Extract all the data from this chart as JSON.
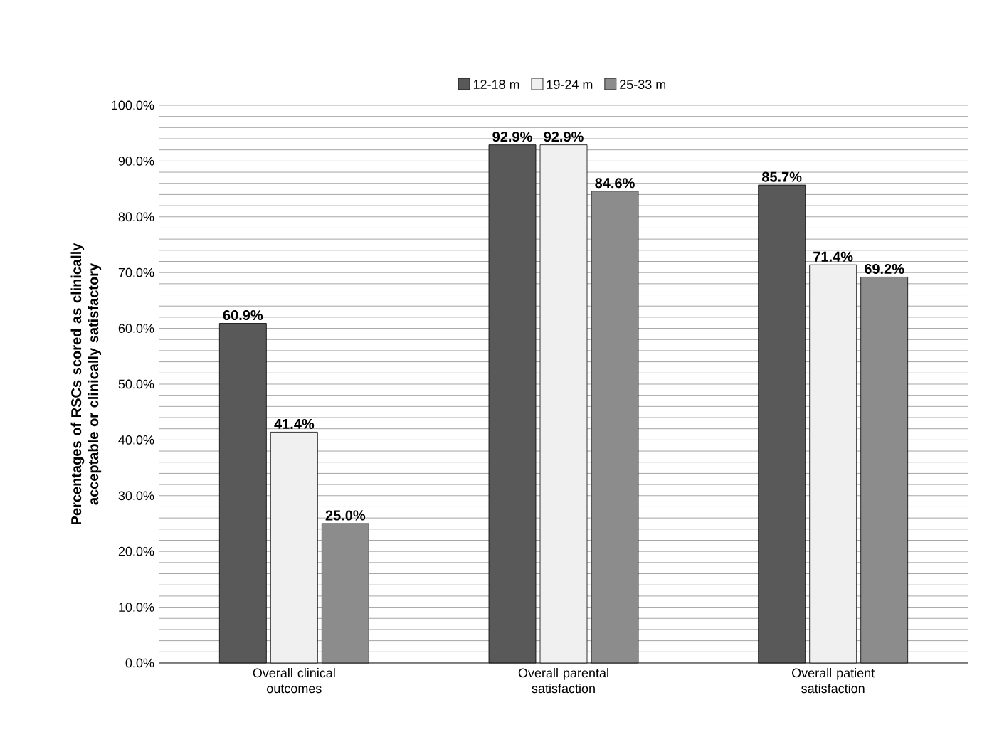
{
  "chart_data": {
    "type": "bar",
    "ylabel": "Percentages of RSCs scored as clinically acceptable or clinically satisfactory",
    "categories": [
      "Overall clinical outcomes",
      "Overall parental satisfaction",
      "Overall patient satisfaction"
    ],
    "series": [
      {
        "name": "12-18 m",
        "color": "#595959",
        "values": [
          60.9,
          92.9,
          85.7
        ],
        "value_labels": [
          "60.9%",
          "92.9%",
          "85.7%"
        ]
      },
      {
        "name": "19-24 m",
        "color": "#f0f0f0",
        "values": [
          41.4,
          92.9,
          71.4
        ],
        "value_labels": [
          "41.4%",
          "92.9%",
          "71.4%"
        ]
      },
      {
        "name": "25-33 m",
        "color": "#8c8c8c",
        "values": [
          25.0,
          84.6,
          69.2
        ],
        "value_labels": [
          "25.0%",
          "84.6%",
          "69.2%"
        ]
      }
    ],
    "ylim": [
      0,
      100
    ],
    "yticks": [
      {
        "value": 0,
        "label": "0.0%"
      },
      {
        "value": 2,
        "label": null
      },
      {
        "value": 4,
        "label": null
      },
      {
        "value": 6,
        "label": null
      },
      {
        "value": 8,
        "label": null
      },
      {
        "value": 10,
        "label": "10.0%"
      },
      {
        "value": 12,
        "label": null
      },
      {
        "value": 14,
        "label": null
      },
      {
        "value": 16,
        "label": null
      },
      {
        "value": 18,
        "label": null
      },
      {
        "value": 20,
        "label": "20.0%"
      },
      {
        "value": 22,
        "label": null
      },
      {
        "value": 24,
        "label": null
      },
      {
        "value": 26,
        "label": null
      },
      {
        "value": 28,
        "label": null
      },
      {
        "value": 30,
        "label": "30.0%"
      },
      {
        "value": 32,
        "label": null
      },
      {
        "value": 34,
        "label": null
      },
      {
        "value": 36,
        "label": null
      },
      {
        "value": 38,
        "label": null
      },
      {
        "value": 40,
        "label": "40.0%"
      },
      {
        "value": 42,
        "label": null
      },
      {
        "value": 44,
        "label": null
      },
      {
        "value": 46,
        "label": null
      },
      {
        "value": 48,
        "label": null
      },
      {
        "value": 50,
        "label": "50.0%"
      },
      {
        "value": 52,
        "label": null
      },
      {
        "value": 54,
        "label": null
      },
      {
        "value": 56,
        "label": null
      },
      {
        "value": 58,
        "label": null
      },
      {
        "value": 60,
        "label": "60.0%"
      },
      {
        "value": 62,
        "label": null
      },
      {
        "value": 64,
        "label": null
      },
      {
        "value": 66,
        "label": null
      },
      {
        "value": 68,
        "label": null
      },
      {
        "value": 70,
        "label": "70.0%"
      },
      {
        "value": 72,
        "label": null
      },
      {
        "value": 74,
        "label": null
      },
      {
        "value": 76,
        "label": null
      },
      {
        "value": 78,
        "label": null
      },
      {
        "value": 80,
        "label": "80.0%"
      },
      {
        "value": 82,
        "label": null
      },
      {
        "value": 84,
        "label": null
      },
      {
        "value": 86,
        "label": null
      },
      {
        "value": 88,
        "label": null
      },
      {
        "value": 90,
        "label": "90.0%"
      },
      {
        "value": 92,
        "label": null
      },
      {
        "value": 94,
        "label": null
      },
      {
        "value": 96,
        "label": null
      },
      {
        "value": 98,
        "label": null
      },
      {
        "value": 100,
        "label": "100.0%"
      }
    ],
    "grid": "y",
    "legend": "top"
  }
}
